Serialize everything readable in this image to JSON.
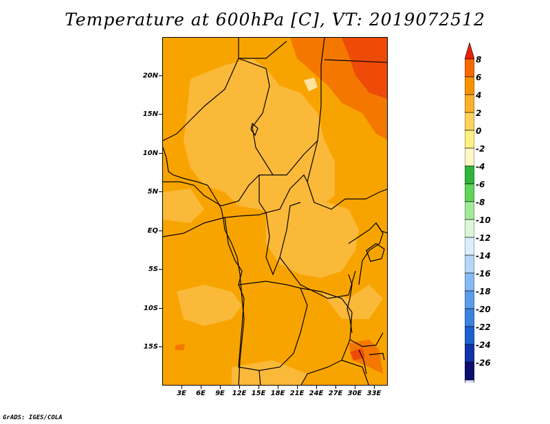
{
  "title": "Temperature at 600hPa [C], VT: 2019072512",
  "y_labels": [
    "20N",
    "15N",
    "10N",
    "5N",
    "EQ",
    "5S",
    "10S",
    "15S"
  ],
  "x_labels": [
    "3E",
    "6E",
    "9E",
    "12E",
    "15E",
    "18E",
    "21E",
    "24E",
    "27E",
    "30E",
    "33E"
  ],
  "colorbar": {
    "labels": [
      "8",
      "6",
      "4",
      "2",
      "0",
      "-2",
      "-4",
      "-6",
      "-8",
      "-10",
      "-12",
      "-14",
      "-16",
      "-18",
      "-20",
      "-22",
      "-24",
      "-26"
    ],
    "colors": [
      "#e8200a",
      "#f46a00",
      "#f79300",
      "#fbb12e",
      "#fdd15b",
      "#fef184",
      "#fff7c6",
      "#2fb53a",
      "#5fd45a",
      "#a3e99b",
      "#dcf6d8",
      "#dbeefe",
      "#b4d7f6",
      "#84baf0",
      "#5a9eea",
      "#3a82e0",
      "#1f60cf",
      "#1232a8",
      "#0b0e6e",
      "#e0e0ff"
    ]
  },
  "credit": "GrADS: IGES/COLA"
}
